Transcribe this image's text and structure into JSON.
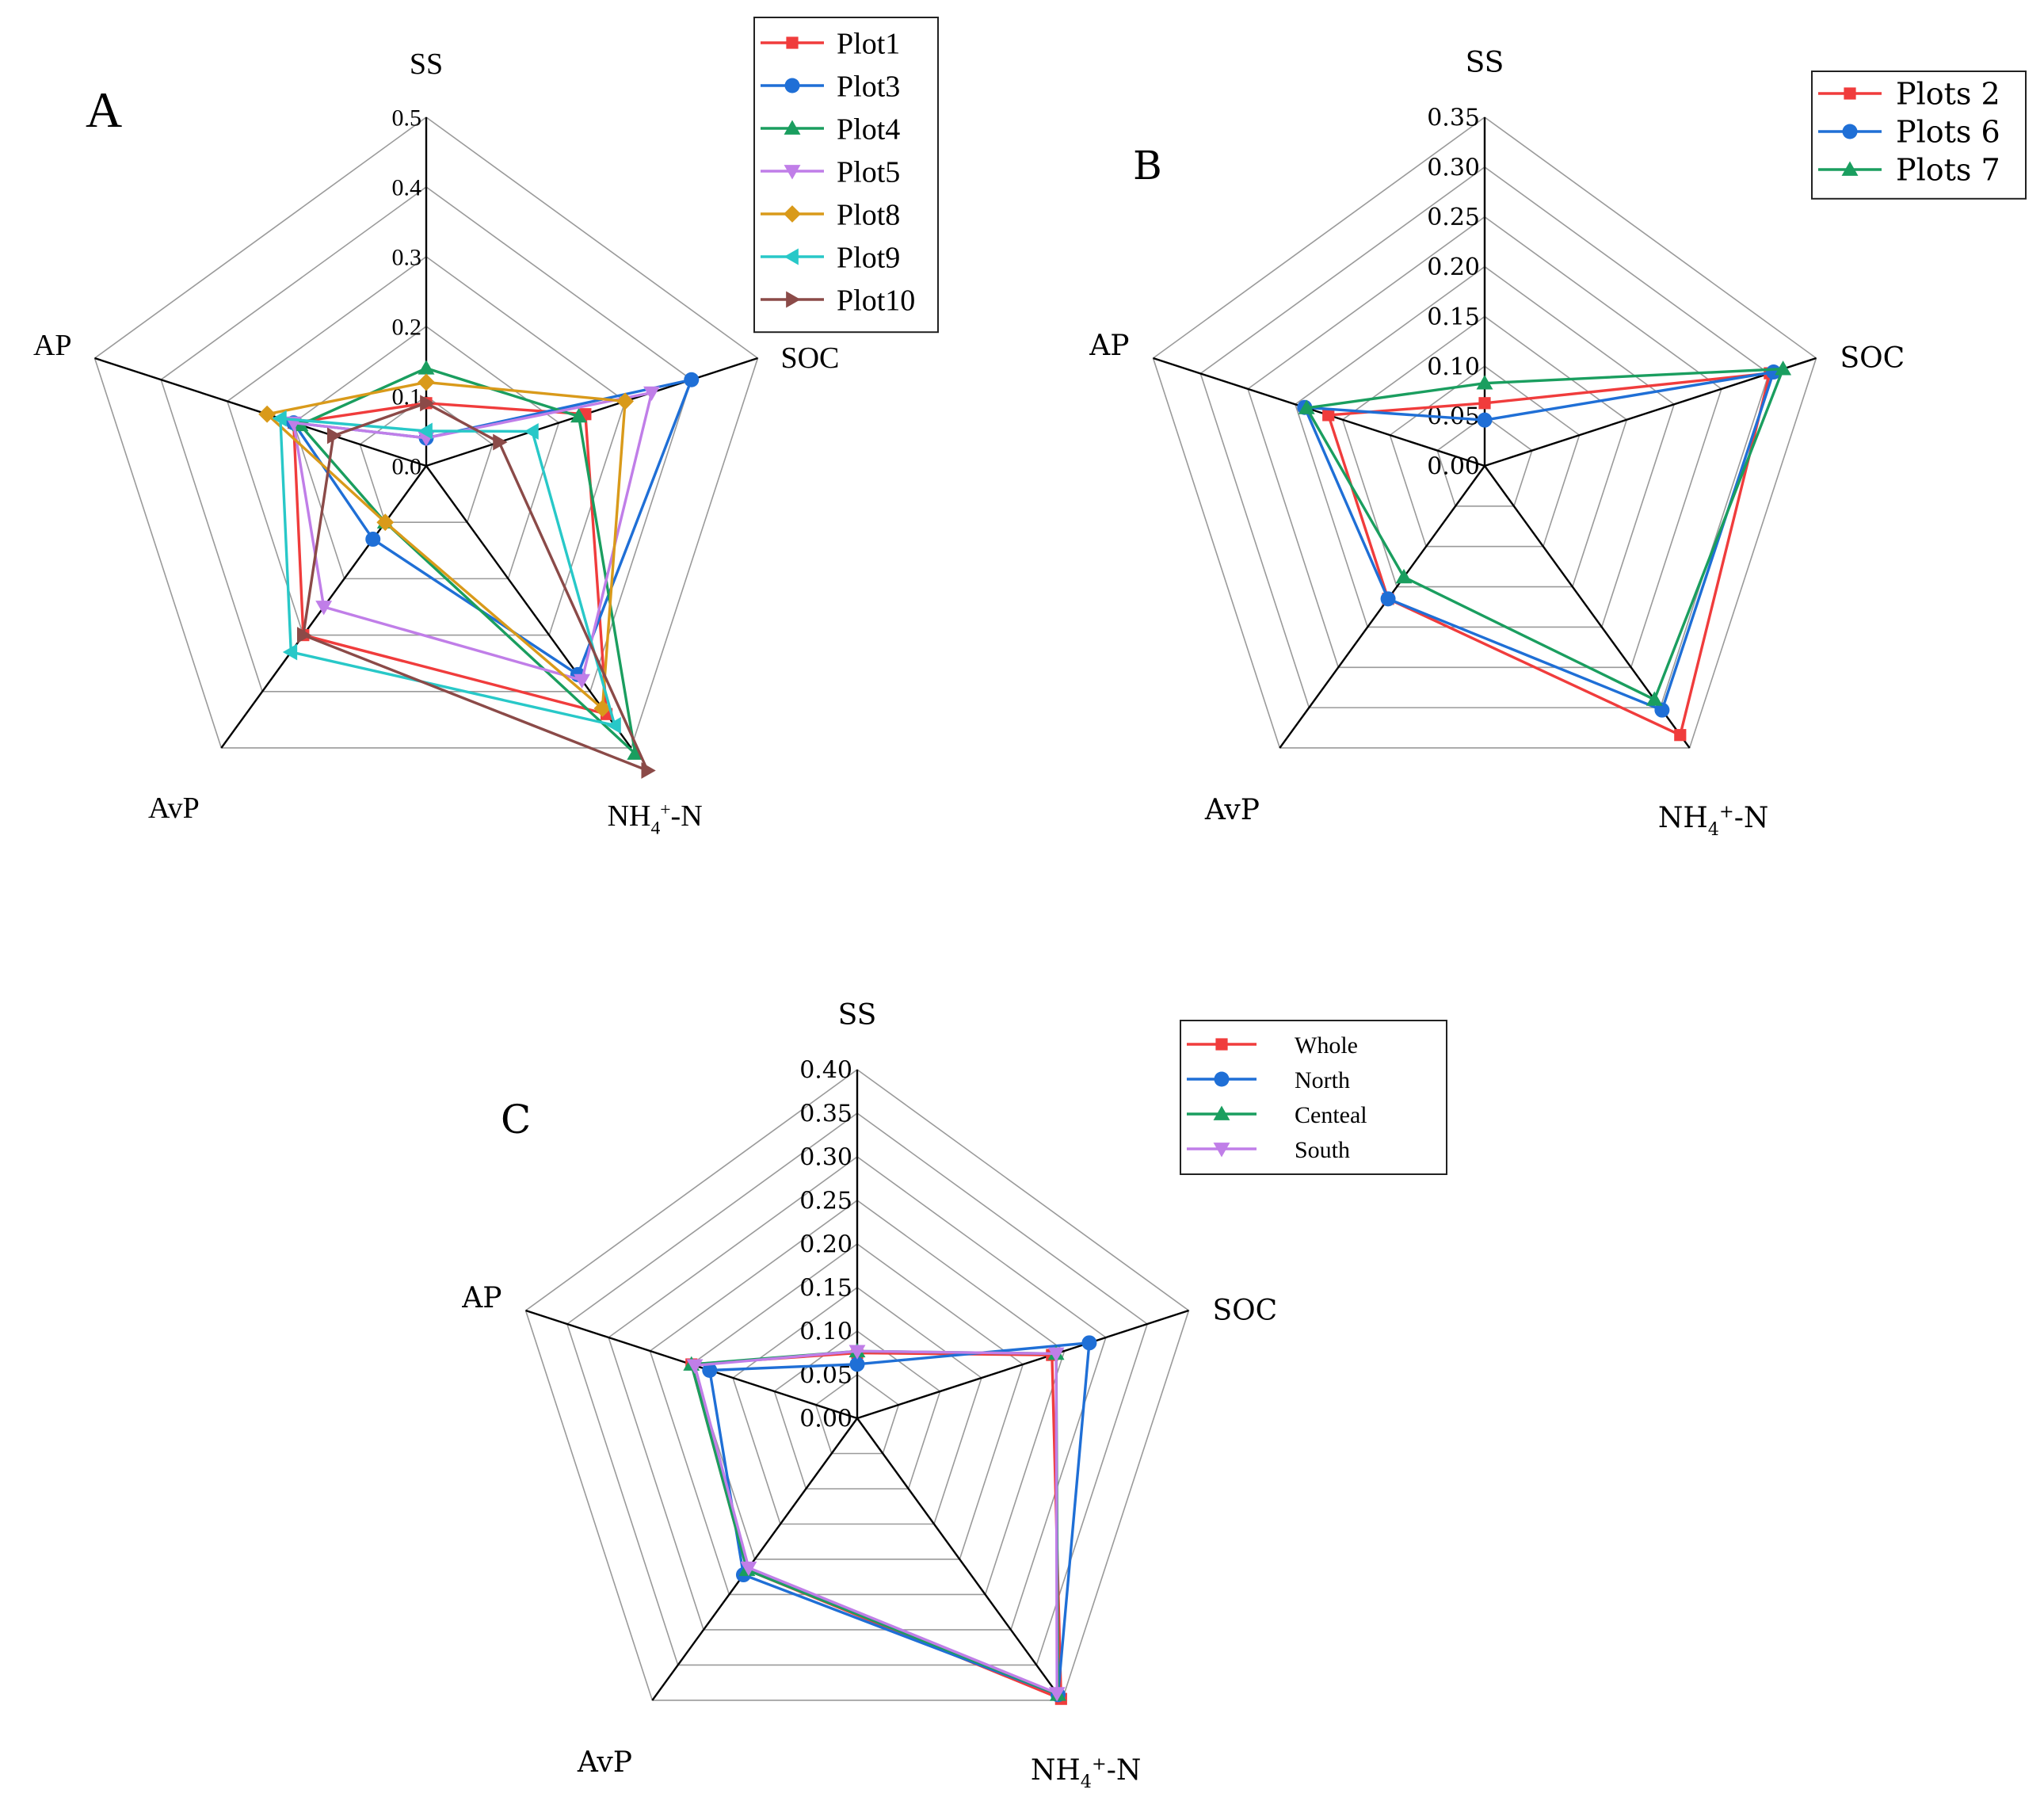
{
  "colors": {
    "red": "#f03c3c",
    "blue": "#1f6fd6",
    "green": "#1a9e5f",
    "purple": "#c07ee8",
    "gold": "#d99a1a",
    "cyan": "#28c8c8",
    "brown": "#8b4a48"
  },
  "chart_data": [
    {
      "type": "radar",
      "panel_label": "A",
      "axes": [
        "SS",
        "SOC",
        "NH4+-N",
        "AvP",
        "AP"
      ],
      "axis_label_parts": {
        "SS": {
          "main": "SS"
        },
        "SOC": {
          "main": "SOC"
        },
        "NH4+-N": {
          "main": "NH",
          "sub": "4",
          "sup": "+",
          "tail": "-N"
        },
        "AvP": {
          "main": "AvP"
        },
        "AP": {
          "main": "AP"
        }
      },
      "rmax": 0.5,
      "tick_labels": [
        "0.0",
        "0.1",
        "0.2",
        "0.3",
        "0.4",
        "0.5"
      ],
      "grid_rings": 5,
      "legend_position": "top-right",
      "series": [
        {
          "name": "Plot1",
          "color": "red",
          "marker": "square",
          "values": [
            0.09,
            0.24,
            0.44,
            0.3,
            0.2
          ]
        },
        {
          "name": "Plot3",
          "color": "blue",
          "marker": "circle",
          "values": [
            0.04,
            0.4,
            0.37,
            0.13,
            0.2
          ]
        },
        {
          "name": "Plot4",
          "color": "green",
          "marker": "triangle-up",
          "values": [
            0.14,
            0.23,
            0.51,
            0.1,
            0.19
          ]
        },
        {
          "name": "Plot5",
          "color": "purple",
          "marker": "triangle-down",
          "values": [
            0.04,
            0.34,
            0.38,
            0.25,
            0.2
          ]
        },
        {
          "name": "Plot8",
          "color": "gold",
          "marker": "diamond",
          "values": [
            0.12,
            0.3,
            0.43,
            0.1,
            0.24
          ]
        },
        {
          "name": "Plot9",
          "color": "cyan",
          "marker": "triangle-left",
          "values": [
            0.05,
            0.16,
            0.46,
            0.33,
            0.22
          ]
        },
        {
          "name": "Plot10",
          "color": "brown",
          "marker": "triangle-right",
          "values": [
            0.09,
            0.11,
            0.54,
            0.3,
            0.14
          ]
        }
      ]
    },
    {
      "type": "radar",
      "panel_label": "B",
      "axes": [
        "SS",
        "SOC",
        "NH4+-N",
        "AvP",
        "AP"
      ],
      "axis_label_parts": {
        "SS": {
          "main": "SS"
        },
        "SOC": {
          "main": "SOC"
        },
        "NH4+-N": {
          "main": "NH",
          "sub": "4",
          "sup": "+",
          "tail": "-N"
        },
        "AvP": {
          "main": "AvP"
        },
        "AP": {
          "main": "AP"
        }
      },
      "rmax": 0.35,
      "tick_labels": [
        "0.00",
        "0.05",
        "0.10",
        "0.15",
        "0.20",
        "0.25",
        "0.30",
        "0.35"
      ],
      "grid_rings": 7,
      "legend_position": "top-right",
      "series": [
        {
          "name": "Plots 2",
          "color": "red",
          "marker": "square",
          "values": [
            0.063,
            0.301,
            0.334,
            0.165,
            0.165
          ]
        },
        {
          "name": "Plots 6",
          "color": "blue",
          "marker": "circle",
          "values": [
            0.046,
            0.305,
            0.303,
            0.165,
            0.19
          ]
        },
        {
          "name": "Plots 7",
          "color": "green",
          "marker": "triangle-up",
          "values": [
            0.083,
            0.315,
            0.29,
            0.138,
            0.188
          ]
        }
      ]
    },
    {
      "type": "radar",
      "panel_label": "C",
      "axes": [
        "SS",
        "SOC",
        "NH4+-N",
        "AvP",
        "AP"
      ],
      "axis_label_parts": {
        "SS": {
          "main": "SS"
        },
        "SOC": {
          "main": "SOC"
        },
        "NH4+-N": {
          "main": "NH",
          "sub": "4",
          "sup": "+",
          "tail": "-N"
        },
        "AvP": {
          "main": "AvP"
        },
        "AP": {
          "main": "AP"
        }
      },
      "rmax": 0.4,
      "tick_labels": [
        "0.00",
        "0.05",
        "0.10",
        "0.15",
        "0.20",
        "0.25",
        "0.30",
        "0.35",
        "0.40"
      ],
      "grid_rings": 8,
      "legend_position": "top-right",
      "series": [
        {
          "name": "Whole",
          "color": "red",
          "marker": "square",
          "values": [
            0.075,
            0.235,
            0.398,
            0.215,
            0.2
          ]
        },
        {
          "name": "North",
          "color": "blue",
          "marker": "circle",
          "values": [
            0.062,
            0.28,
            0.392,
            0.222,
            0.178
          ]
        },
        {
          "name": "Centeal",
          "color": "green",
          "marker": "triangle-up",
          "values": [
            0.077,
            0.24,
            0.392,
            0.215,
            0.2
          ]
        },
        {
          "name": "South",
          "color": "purple",
          "marker": "triangle-down",
          "values": [
            0.077,
            0.24,
            0.39,
            0.212,
            0.196
          ]
        }
      ]
    }
  ]
}
